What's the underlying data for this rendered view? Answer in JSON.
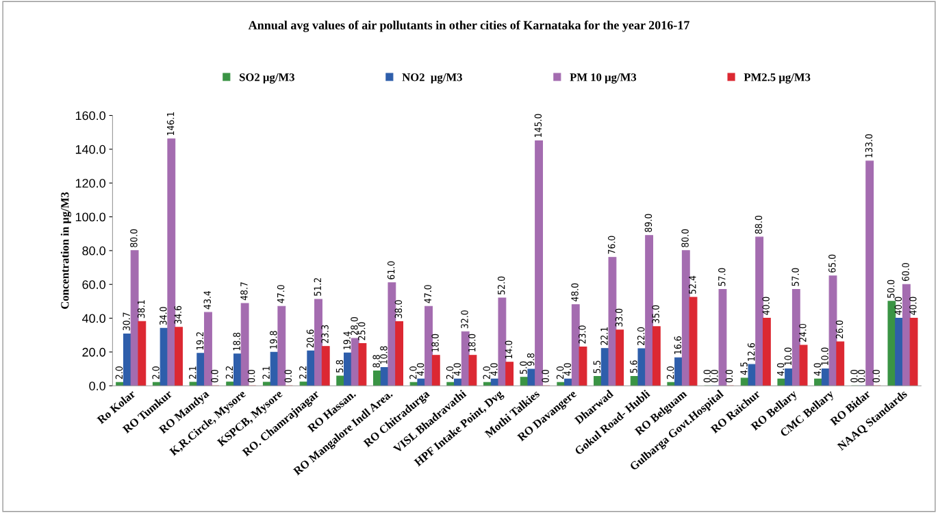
{
  "chart_data": {
    "type": "bar",
    "title": "Annual avg values of air pollutants in other cities of Karnataka for the year 2016-17",
    "ylabel": "Concentration in µg/M3",
    "categories": [
      "Ro Kolar",
      "RO Tumkur",
      "RO Mandya",
      "K,R.Circle, Mysore",
      "KSPCB, Mysore",
      "RO. Chamrajnagar",
      "RO Hassan.",
      "RO Mangalore Indl Area.",
      "RO Chitradurga",
      "VISL Bhadravathi",
      "HPF Intake Point, Dvg",
      "Mothi Talkies",
      "RO Davangere",
      "Dharwad",
      "Gokul Road- Hubli",
      "RO Belguam",
      "Gulbarga Govt.Hospital",
      "RO Raichur",
      "RO Bellary",
      "CMC Bellary",
      "RO Bidar",
      "NAAQ Standards"
    ],
    "series": [
      {
        "name": "SO2 µg/M3",
        "color": "#3a9444",
        "values": [
          2.0,
          2.0,
          2.1,
          2.2,
          2.1,
          2.2,
          5.8,
          8.8,
          2.0,
          2.0,
          2.0,
          5.0,
          2.0,
          5.5,
          5.6,
          2.0,
          0.0,
          4.5,
          4.0,
          4.0,
          0.0,
          50.0
        ],
        "value_labels": [
          "2.0",
          "2.0",
          "2.1",
          "2.2",
          "2.1",
          "2.2",
          "5.8",
          "8.8",
          "2.0",
          "2.0",
          "2.0",
          "5.0",
          "2.0",
          "5.5",
          "5.6",
          "2.0",
          "0.0",
          "4.5",
          "4.0",
          "4.0",
          "0.0",
          "50.0"
        ]
      },
      {
        "name": "NO2  µg/M3",
        "color": "#2e5eab",
        "values": [
          30.7,
          34.0,
          19.2,
          18.8,
          19.8,
          20.6,
          19.4,
          10.8,
          4.0,
          4.0,
          4.0,
          9.8,
          4.0,
          22.1,
          22.0,
          16.6,
          0.0,
          12.6,
          10.0,
          10.0,
          0.0,
          40.0
        ],
        "value_labels": [
          "30.7",
          "34.0",
          "19.2",
          "18.8",
          "19.8",
          "20.6",
          "19.4",
          "10.8",
          "4.0",
          "4.0",
          "4.0",
          "9.8",
          "4.0",
          "22.1",
          "22.0",
          "16.6",
          "0.0",
          "12.6",
          "10.0",
          "10.0",
          "0.0",
          "40.0"
        ]
      },
      {
        "name": "PM 10 µg/M3",
        "color": "#a46cb0",
        "values": [
          80.0,
          146.1,
          43.4,
          48.7,
          47.0,
          51.2,
          28.0,
          61.0,
          47.0,
          32.0,
          52.0,
          145.0,
          48.0,
          76.0,
          89.0,
          80.0,
          57.0,
          88.0,
          57.0,
          65.0,
          133.0,
          60.0
        ],
        "value_labels": [
          "80.0",
          "146.1",
          "43.4",
          "48.7",
          "47.0",
          "51.2",
          "28.0",
          "61.0",
          "47.0",
          "32.0",
          "52.0",
          "145.0",
          "48.0",
          "76.0",
          "89.0",
          "80.0",
          "57.0",
          "88.0",
          "57.0",
          "65.0",
          "133.0",
          "60.0"
        ]
      },
      {
        "name": "PM2.5 µg/M3",
        "color": "#dc2832",
        "values": [
          38.1,
          34.6,
          0.0,
          0.0,
          0.0,
          23.3,
          25.0,
          38.0,
          18.0,
          18.0,
          14.0,
          0.0,
          23.0,
          33.0,
          35.0,
          52.4,
          0.0,
          40.0,
          24.0,
          26.0,
          0.0,
          40.0
        ],
        "value_labels": [
          "38.1",
          "34.6",
          "0.0",
          "0.0",
          "0.0",
          "23.3",
          "25.0",
          "38.0",
          "18.0",
          "18.0",
          "14.0",
          "0.0",
          "23.0",
          "33.0",
          "35.0",
          "52.4",
          "0.0",
          "40.0",
          "24.0",
          "26.0",
          "0.0",
          "40.0"
        ]
      }
    ],
    "ylim": [
      0,
      160
    ],
    "yticks": [
      {
        "value": 0,
        "label": "0.0"
      },
      {
        "value": 20,
        "label": "20.0"
      },
      {
        "value": 40,
        "label": "40.0"
      },
      {
        "value": 60,
        "label": "60.0"
      },
      {
        "value": 80,
        "label": "80.0"
      },
      {
        "value": 100,
        "label": "100.0"
      },
      {
        "value": 120,
        "label": "120.0"
      },
      {
        "value": 140,
        "label": "140.0"
      },
      {
        "value": 160,
        "label": "160.0"
      }
    ],
    "legend": "top",
    "grid": false
  }
}
